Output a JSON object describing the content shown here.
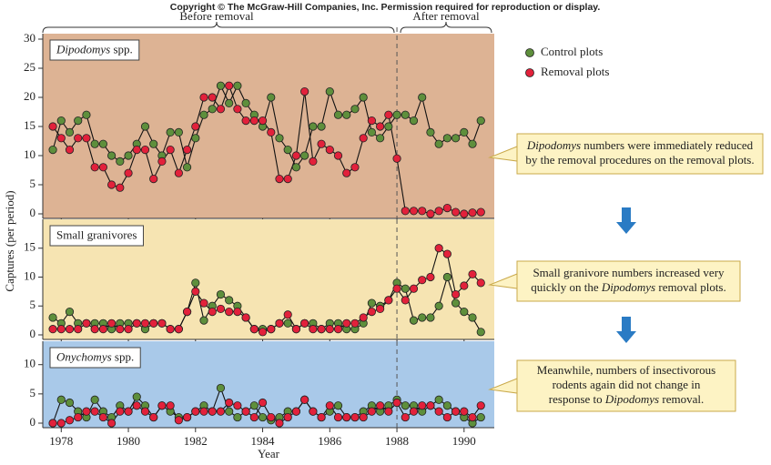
{
  "header": {
    "copyright": "Copyright © The McGraw-Hill Companies, Inc. Permission required for reproduction or display.",
    "before": "Before removal",
    "after": "After removal"
  },
  "chart_data": [
    {
      "type": "line",
      "label": [
        {
          "text": "Dipodomys",
          "italic": true
        },
        {
          "text": " spp.",
          "italic": false
        }
      ],
      "background": "#ddb394",
      "x": [
        1977.75,
        1978,
        1978.25,
        1978.5,
        1978.75,
        1979,
        1979.25,
        1979.5,
        1979.75,
        1980,
        1980.25,
        1980.5,
        1980.75,
        1981,
        1981.25,
        1981.5,
        1981.75,
        1982,
        1982.25,
        1982.5,
        1982.75,
        1983,
        1983.25,
        1983.5,
        1983.75,
        1984,
        1984.25,
        1984.5,
        1984.75,
        1985,
        1985.25,
        1985.5,
        1985.75,
        1986,
        1986.25,
        1986.5,
        1986.75,
        1987,
        1987.25,
        1987.5,
        1987.75,
        1988,
        1988.25,
        1988.5,
        1988.75,
        1989,
        1989.25,
        1989.5,
        1989.75,
        1990,
        1990.25,
        1990.5
      ],
      "xlim": [
        1977.45,
        1990.9
      ],
      "xticks": [
        1978,
        1980,
        1982,
        1984,
        1986,
        1988,
        1990
      ],
      "vline": 1988,
      "ylim": [
        0,
        30
      ],
      "yticks": [
        0,
        5,
        10,
        15,
        20,
        25,
        30
      ],
      "series": [
        {
          "name": "Control plots",
          "color": "#5e8f3c",
          "values": [
            11,
            16,
            14,
            16,
            17,
            12,
            12,
            10,
            9,
            10,
            12,
            15,
            12,
            10,
            14,
            14,
            8,
            13,
            17,
            18,
            22,
            19,
            22,
            19,
            17,
            15,
            20,
            13,
            11,
            8,
            10,
            15,
            15,
            21,
            17,
            17,
            18,
            20,
            14,
            13,
            15,
            17,
            17,
            16,
            20,
            14,
            12,
            13,
            13,
            14,
            12,
            16
          ]
        },
        {
          "name": "Removal plots",
          "color": "#e2213b",
          "values": [
            15,
            13,
            11,
            13,
            13,
            8,
            8,
            5,
            4.5,
            7,
            11,
            11,
            6,
            9,
            11,
            7,
            11,
            15,
            20,
            20,
            18,
            22,
            18,
            16,
            16,
            16,
            14,
            6,
            6,
            10,
            21,
            9,
            12,
            11,
            10,
            7,
            8,
            13,
            16,
            15,
            17,
            9.5,
            0.5,
            0.5,
            0.5,
            0,
            0.5,
            1,
            0.3,
            0,
            0.2,
            0.3
          ]
        }
      ],
      "annotation": [
        [
          {
            "text": "Dipodomys",
            "italic": true
          },
          {
            "text": " numbers were immediately reduced",
            "italic": false
          }
        ],
        [
          {
            "text": "by the removal procedures on the removal plots.",
            "italic": false
          }
        ]
      ]
    },
    {
      "type": "line",
      "label": [
        {
          "text": "Small granivores",
          "italic": false
        }
      ],
      "background": "#f6e4b2",
      "ylabel": "Captures (per period)",
      "x": [
        1977.75,
        1978,
        1978.25,
        1978.5,
        1978.75,
        1979,
        1979.25,
        1979.5,
        1979.75,
        1980,
        1980.25,
        1980.5,
        1980.75,
        1981,
        1981.25,
        1981.5,
        1981.75,
        1982,
        1982.25,
        1982.5,
        1982.75,
        1983,
        1983.25,
        1983.5,
        1983.75,
        1984,
        1984.25,
        1984.5,
        1984.75,
        1985,
        1985.25,
        1985.5,
        1985.75,
        1986,
        1986.25,
        1986.5,
        1986.75,
        1987,
        1987.25,
        1987.5,
        1987.75,
        1988,
        1988.25,
        1988.5,
        1988.75,
        1989,
        1989.25,
        1989.5,
        1989.75,
        1990,
        1990.25,
        1990.5
      ],
      "xlim": [
        1977.45,
        1990.9
      ],
      "xticks": [
        1978,
        1980,
        1982,
        1984,
        1986,
        1988,
        1990
      ],
      "vline": 1988,
      "ylim": [
        0,
        20
      ],
      "yticks": [
        0,
        5,
        10,
        15
      ],
      "series": [
        {
          "name": "Control plots",
          "color": "#5e8f3c",
          "values": [
            3,
            2,
            4,
            2,
            2,
            2,
            2,
            1,
            2,
            2,
            2,
            1,
            2,
            2,
            1,
            1,
            4,
            9,
            2.5,
            5,
            7,
            6,
            5,
            3,
            1,
            1,
            1,
            2,
            2,
            1,
            2,
            2,
            1,
            2,
            2,
            1,
            1,
            2,
            5.5,
            5,
            6,
            9,
            8,
            2.5,
            3,
            3,
            5,
            10,
            5.5,
            4,
            3,
            0.5
          ]
        },
        {
          "name": "Removal plots",
          "color": "#e2213b",
          "values": [
            1,
            1,
            1,
            1,
            2,
            1,
            1,
            2,
            1,
            1,
            2,
            2,
            2,
            2,
            1,
            1,
            4,
            7.5,
            5.5,
            4,
            4.5,
            4,
            4,
            3,
            1,
            0.5,
            1,
            2,
            3.5,
            1,
            2,
            1,
            1,
            1,
            1,
            2,
            2,
            3,
            4,
            4.5,
            6,
            8,
            6,
            8,
            9.5,
            10,
            15,
            14,
            7,
            8.5,
            10.5,
            9
          ]
        }
      ],
      "annotation": [
        [
          {
            "text": "Small granivore numbers increased very",
            "italic": false
          }
        ],
        [
          {
            "text": "quickly on the ",
            "italic": false
          },
          {
            "text": "Dipodomys",
            "italic": true
          },
          {
            "text": " removal plots.",
            "italic": false
          }
        ]
      ]
    },
    {
      "type": "line",
      "label": [
        {
          "text": "Onychomys",
          "italic": true
        },
        {
          "text": " spp.",
          "italic": false
        }
      ],
      "background": "#a9c9e9",
      "xlabel": "Year",
      "x": [
        1977.75,
        1978,
        1978.25,
        1978.5,
        1978.75,
        1979,
        1979.25,
        1979.5,
        1979.75,
        1980,
        1980.25,
        1980.5,
        1980.75,
        1981,
        1981.25,
        1981.5,
        1981.75,
        1982,
        1982.25,
        1982.5,
        1982.75,
        1983,
        1983.25,
        1983.5,
        1983.75,
        1984,
        1984.25,
        1984.5,
        1984.75,
        1985,
        1985.25,
        1985.5,
        1985.75,
        1986,
        1986.25,
        1986.5,
        1986.75,
        1987,
        1987.25,
        1987.5,
        1987.75,
        1988,
        1988.25,
        1988.5,
        1988.75,
        1989,
        1989.25,
        1989.5,
        1989.75,
        1990,
        1990.25,
        1990.5
      ],
      "xlim": [
        1977.45,
        1990.9
      ],
      "xticks": [
        1978,
        1980,
        1982,
        1984,
        1986,
        1988,
        1990
      ],
      "vline": 1988,
      "ylim": [
        0,
        14
      ],
      "yticks": [
        0,
        5,
        10
      ],
      "series": [
        {
          "name": "Control plots",
          "color": "#5e8f3c",
          "values": [
            0,
            4,
            3.5,
            2,
            1,
            4,
            2,
            1,
            3,
            2,
            4.5,
            3,
            1,
            3,
            2,
            1,
            1,
            2,
            3,
            2,
            6,
            2,
            1,
            2,
            3,
            1,
            0.5,
            1,
            2,
            2,
            4,
            2,
            1,
            2,
            3,
            1,
            1,
            2,
            3,
            2,
            3,
            4,
            3,
            3,
            2,
            3,
            4,
            3,
            2,
            1,
            0,
            1
          ]
        },
        {
          "name": "Removal plots",
          "color": "#e2213b",
          "values": [
            0,
            0,
            0.5,
            1,
            2,
            2,
            1,
            0,
            2,
            2,
            3,
            2,
            1,
            3,
            3,
            0.5,
            1,
            2,
            2,
            2,
            2,
            3.5,
            3,
            2,
            1,
            3.5,
            1,
            0,
            1,
            2,
            4,
            2,
            1,
            3,
            1,
            1,
            1,
            1,
            2,
            3,
            2,
            3.5,
            1,
            2,
            3,
            3,
            2,
            1,
            2,
            2,
            1,
            3
          ]
        }
      ],
      "annotation": [
        [
          {
            "text": "Meanwhile, numbers of insectivorous",
            "italic": false
          }
        ],
        [
          {
            "text": "rodents again did not change in",
            "italic": false
          }
        ],
        [
          {
            "text": "response to ",
            "italic": false
          },
          {
            "text": "Dipodomys",
            "italic": true
          },
          {
            "text": " removal.",
            "italic": false
          }
        ]
      ]
    }
  ]
}
